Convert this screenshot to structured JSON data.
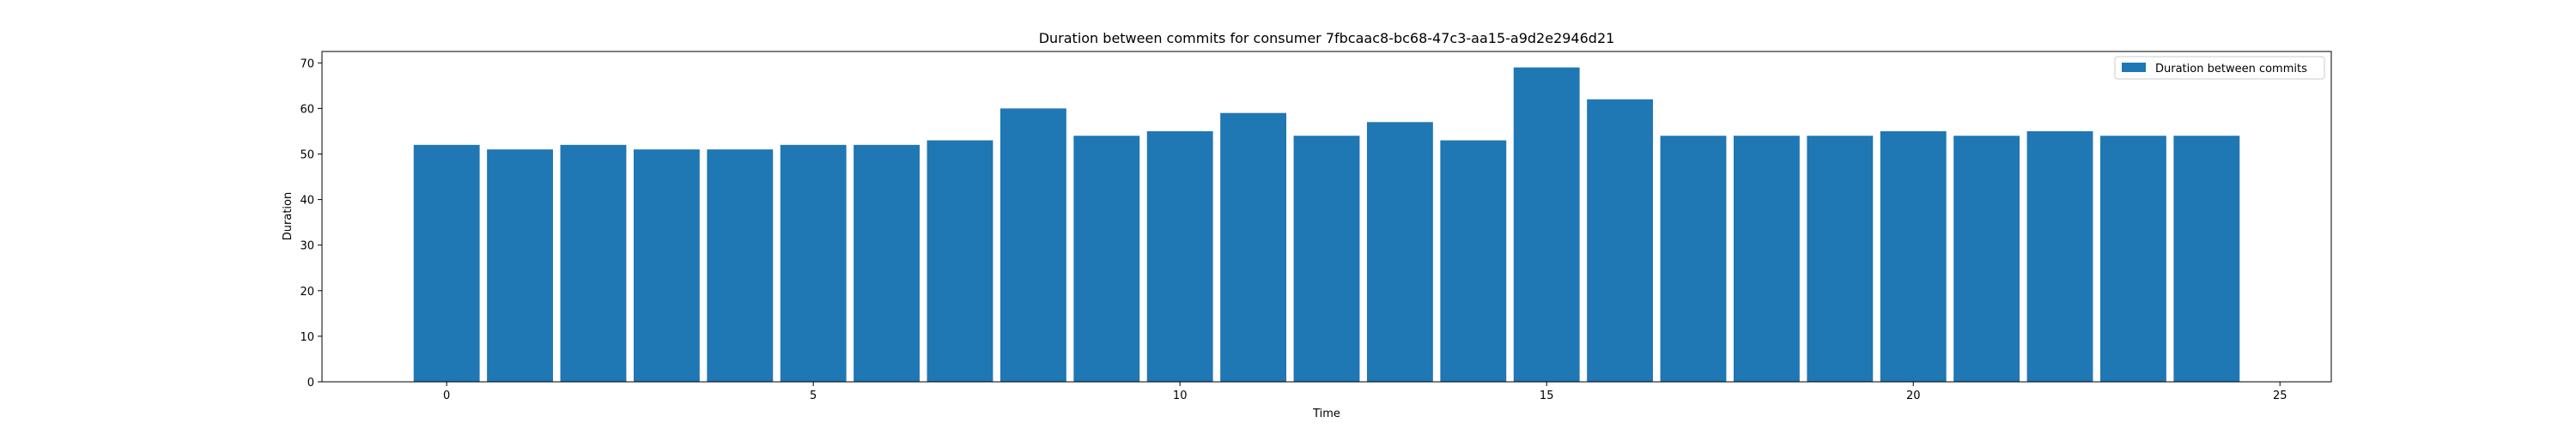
{
  "chart_data": {
    "type": "bar",
    "title": "Duration between commits for consumer 7fbcaac8-bc68-47c3-aa15-a9d2e2946d21",
    "xlabel": "Time",
    "ylabel": "Duration",
    "x": [
      0,
      1,
      2,
      3,
      4,
      5,
      6,
      7,
      8,
      9,
      10,
      11,
      12,
      13,
      14,
      15,
      16,
      17,
      18,
      19,
      20,
      21,
      22,
      23,
      24
    ],
    "series": [
      {
        "name": "Duration between commits",
        "values": [
          52,
          51,
          52,
          51,
          51,
          52,
          52,
          53,
          60,
          54,
          55,
          59,
          54,
          57,
          53,
          69,
          62,
          54,
          54,
          54,
          55,
          54,
          55,
          54,
          54
        ]
      }
    ],
    "xlim": [
      -1.7,
      25.7
    ],
    "ylim": [
      0,
      72.5
    ],
    "xticks": [
      0,
      5,
      10,
      15,
      20,
      25
    ],
    "yticks": [
      0,
      10,
      20,
      30,
      40,
      50,
      60,
      70
    ],
    "bar_width": 0.9,
    "grid": false,
    "legend_position": "upper right",
    "colors": {
      "bar": "#1f77b4",
      "frame": "#000000",
      "background": "#ffffff"
    }
  }
}
